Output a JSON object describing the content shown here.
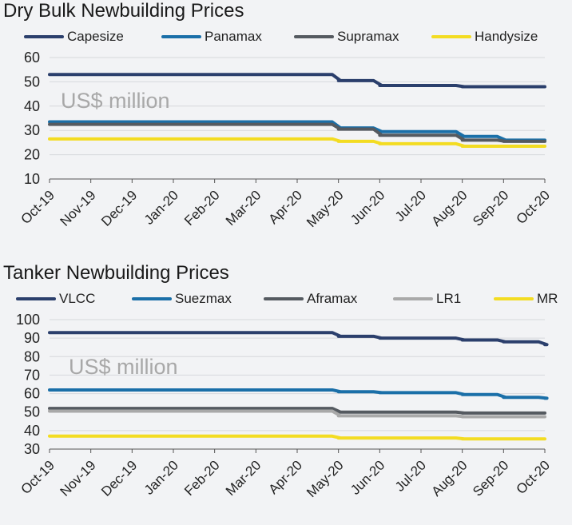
{
  "chart_data": [
    {
      "type": "line",
      "title": "Dry Bulk Newbuilding Prices",
      "unit_label": "US$ million",
      "categories": [
        "Oct-19",
        "Nov-19",
        "Dec-19",
        "Jan-20",
        "Feb-20",
        "Mar-20",
        "Apr-20",
        "May-20",
        "Jun-20",
        "Jul-20",
        "Aug-20",
        "Sep-20",
        "Oct-20"
      ],
      "ylim": [
        10,
        60
      ],
      "yticks": [
        10,
        20,
        30,
        40,
        50,
        60
      ],
      "grid": true,
      "legend_position": "top",
      "series": [
        {
          "name": "Capesize",
          "color": "#2b3f6c",
          "values": [
            53,
            53,
            53,
            53,
            53,
            53,
            53,
            50.5,
            48.5,
            48.5,
            48,
            48,
            48
          ]
        },
        {
          "name": "Panamax",
          "color": "#1a6fa8",
          "values": [
            33.5,
            33.5,
            33.5,
            33.5,
            33.5,
            33.5,
            33.5,
            31,
            29.5,
            29.5,
            27.5,
            26,
            26
          ]
        },
        {
          "name": "Supramax",
          "color": "#555a60",
          "values": [
            32.5,
            32.5,
            32.5,
            32.5,
            32.5,
            32.5,
            32.5,
            30.5,
            28,
            28,
            26,
            25.5,
            25.5
          ]
        },
        {
          "name": "Handysize",
          "color": "#f3dc22",
          "values": [
            26.5,
            26.5,
            26.5,
            26.5,
            26.5,
            26.5,
            26.5,
            25.5,
            24.5,
            24.5,
            23.5,
            23.5,
            23.5
          ]
        }
      ]
    },
    {
      "type": "line",
      "title": "Tanker Newbuilding Prices",
      "unit_label": "US$ million",
      "categories": [
        "Oct-19",
        "Nov-19",
        "Dec-19",
        "Jan-20",
        "Feb-20",
        "Mar-20",
        "Apr-20",
        "May-20",
        "Jun-20",
        "Jul-20",
        "Aug-20",
        "Sep-20",
        "Oct-20"
      ],
      "ylim": [
        30,
        100
      ],
      "yticks": [
        30,
        40,
        50,
        60,
        70,
        80,
        90,
        100
      ],
      "grid": true,
      "legend_position": "top",
      "series": [
        {
          "name": "VLCC",
          "color": "#2b3f6c",
          "values": [
            93,
            93,
            93,
            93,
            93,
            93,
            93,
            91,
            90,
            90,
            89,
            88,
            86.5
          ]
        },
        {
          "name": "Suezmax",
          "color": "#1a6fa8",
          "values": [
            62,
            62,
            62,
            62,
            62,
            62,
            62,
            61,
            60.5,
            60.5,
            59.5,
            58,
            57.5
          ]
        },
        {
          "name": "Aframax",
          "color": "#555a60",
          "values": [
            52,
            52,
            52,
            52,
            52,
            52,
            52,
            50,
            50,
            50,
            49.5,
            49.5,
            49.5
          ]
        },
        {
          "name": "LR1",
          "color": "#a9a9a9",
          "values": [
            50.5,
            50.5,
            50.5,
            50.5,
            50.5,
            50.5,
            50.5,
            48,
            48,
            48,
            47.5,
            47.5,
            47.5
          ]
        },
        {
          "name": "MR",
          "color": "#f3dc22",
          "values": [
            37,
            37,
            37,
            37,
            37,
            37,
            37,
            36,
            36,
            36,
            35.5,
            35.5,
            35.5
          ]
        }
      ]
    }
  ]
}
